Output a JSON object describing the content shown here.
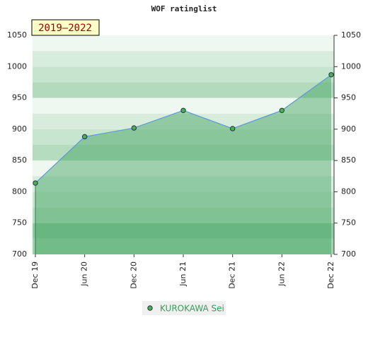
{
  "chart_data": {
    "type": "line",
    "title": "WOF ratinglist",
    "badge": "2019–2022",
    "categories": [
      "Dec 19",
      "Jun 20",
      "Dec 20",
      "Jun 21",
      "Dec 21",
      "Jun 22",
      "Dec 22"
    ],
    "series": [
      {
        "name": "KUROKAWA Sei",
        "color": "#5b9bd5",
        "marker_color": "#4caf50",
        "values": [
          814,
          888,
          902,
          930,
          901,
          930,
          987
        ]
      }
    ],
    "ylim": [
      700,
      1050
    ],
    "yticks": [
      700,
      750,
      800,
      850,
      900,
      950,
      1000,
      1050
    ],
    "grid": true
  }
}
